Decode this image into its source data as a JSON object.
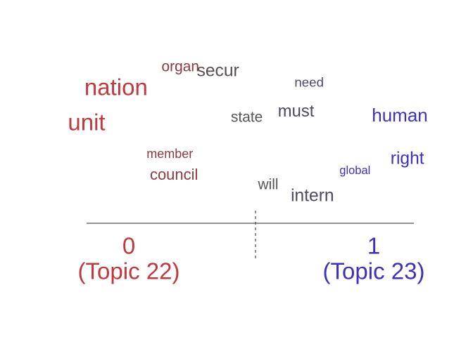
{
  "chart_data": {
    "type": "scatter",
    "title": "",
    "xlabel": "",
    "ylabel": "",
    "xlim": [
      0,
      1
    ],
    "colors": {
      "left": "#c0393f",
      "right": "#3c32bf",
      "mid": "#555555"
    },
    "poles": [
      {
        "value": "0",
        "label": "(Topic 22)",
        "color": "#c0393f"
      },
      {
        "value": "1",
        "label": "(Topic 23)",
        "color": "#3c32bf"
      }
    ],
    "words": [
      {
        "term": "organ",
        "x": 0.25,
        "weight": 0.45,
        "color": "#8b3a3e"
      },
      {
        "term": "secur",
        "x": 0.41,
        "weight": 0.62,
        "color": "#5a4e52"
      },
      {
        "term": "nation",
        "x": 0.09,
        "weight": 1.0,
        "color": "#c0393f"
      },
      {
        "term": "need",
        "x": 0.68,
        "weight": 0.35,
        "color": "#4a4a6e"
      },
      {
        "term": "state",
        "x": 0.44,
        "weight": 0.45,
        "color": "#555555"
      },
      {
        "term": "must",
        "x": 0.64,
        "weight": 0.58,
        "color": "#4c4a62"
      },
      {
        "term": "human",
        "x": 1.0,
        "weight": 0.68,
        "color": "#3c32bf"
      },
      {
        "term": "unit",
        "x": 0.0,
        "weight": 1.0,
        "color": "#c0393f"
      },
      {
        "term": "member",
        "x": 0.25,
        "weight": 0.32,
        "color": "#8b3a3e"
      },
      {
        "term": "right",
        "x": 0.98,
        "weight": 0.62,
        "color": "#3c32bf"
      },
      {
        "term": "global",
        "x": 0.82,
        "weight": 0.25,
        "color": "#3c32bf"
      },
      {
        "term": "council",
        "x": 0.28,
        "weight": 0.5,
        "color": "#8b3a3e"
      },
      {
        "term": "will",
        "x": 0.57,
        "weight": 0.45,
        "color": "#555555"
      },
      {
        "term": "intern",
        "x": 0.69,
        "weight": 0.62,
        "color": "#4c4a62"
      }
    ]
  }
}
